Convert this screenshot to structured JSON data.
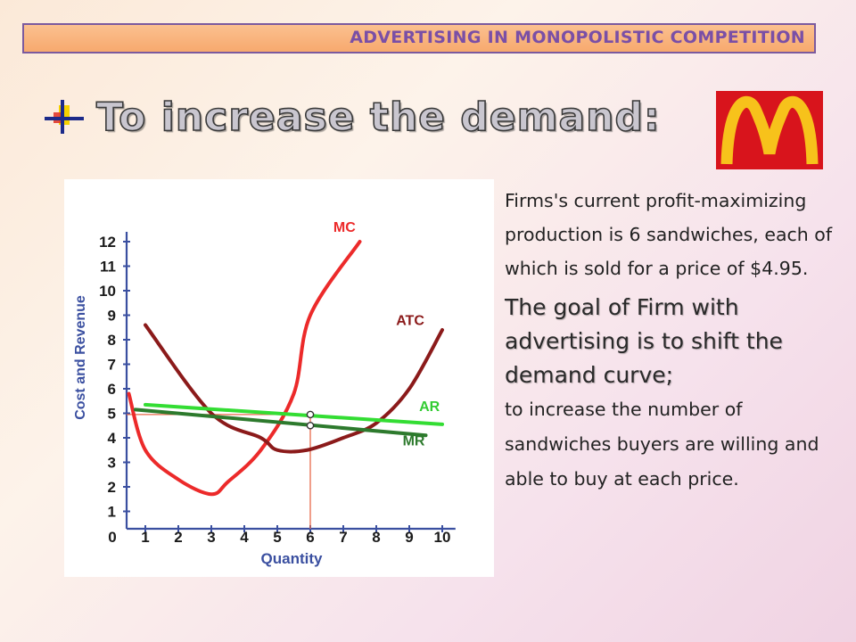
{
  "banner": {
    "title": "ADVERTISING IN MONOPOLISTIC COMPETITION"
  },
  "heading": {
    "text": "To increase the demand:"
  },
  "logo": {
    "name": "mcdonalds-logo",
    "bg": "#d8141c",
    "arch": "#f7c21b"
  },
  "body": {
    "p1": "Firms's current profit-maximizing production is 6 sandwiches, each of which is sold for a price of $4.95.",
    "p2": "The goal of Firm with advertising is to shift the demand curve;",
    "p3": "to increase the number of sandwiches buyers are willing and able to buy at each price."
  },
  "chart_data": {
    "type": "line",
    "xlabel": "Quantity",
    "ylabel": "Cost and Revenue",
    "x_ticks": [
      "0",
      "1",
      "2",
      "3",
      "4",
      "5",
      "6",
      "7",
      "8",
      "9",
      "10"
    ],
    "y_ticks": [
      "1",
      "2",
      "3",
      "4",
      "5",
      "6",
      "7",
      "8",
      "9",
      "10",
      "11",
      "12"
    ],
    "xlim": [
      0,
      10
    ],
    "ylim": [
      0,
      12
    ],
    "grid": false,
    "series": [
      {
        "name": "MC",
        "color": "#ec2a2a",
        "x": [
          0.5,
          1.0,
          2.0,
          3.0,
          3.5,
          4.5,
          5.5,
          6.0,
          7.5
        ],
        "y": [
          5.8,
          3.5,
          2.3,
          1.7,
          2.2,
          3.5,
          5.8,
          9.0,
          12.0
        ]
      },
      {
        "name": "ATC",
        "color": "#8b1a1a",
        "x": [
          1.0,
          3.0,
          4.5,
          5.0,
          5.9,
          7.0,
          8.0,
          9.0,
          10.0
        ],
        "y": [
          8.6,
          5.0,
          4.0,
          3.5,
          3.5,
          4.0,
          4.6,
          6.0,
          8.4
        ]
      },
      {
        "name": "AR",
        "color": "#33dd33",
        "x": [
          1.0,
          10.0
        ],
        "y": [
          5.35,
          4.55
        ]
      },
      {
        "name": "MR",
        "color": "#2d7a2d",
        "x": [
          0.7,
          9.5
        ],
        "y": [
          5.15,
          4.1
        ]
      }
    ],
    "guides": {
      "price": 4.95,
      "quantity": 6,
      "color": "#e86a4a"
    },
    "markers": [
      {
        "x": 6,
        "y": 4.95
      },
      {
        "x": 6,
        "y": 4.5
      }
    ]
  }
}
